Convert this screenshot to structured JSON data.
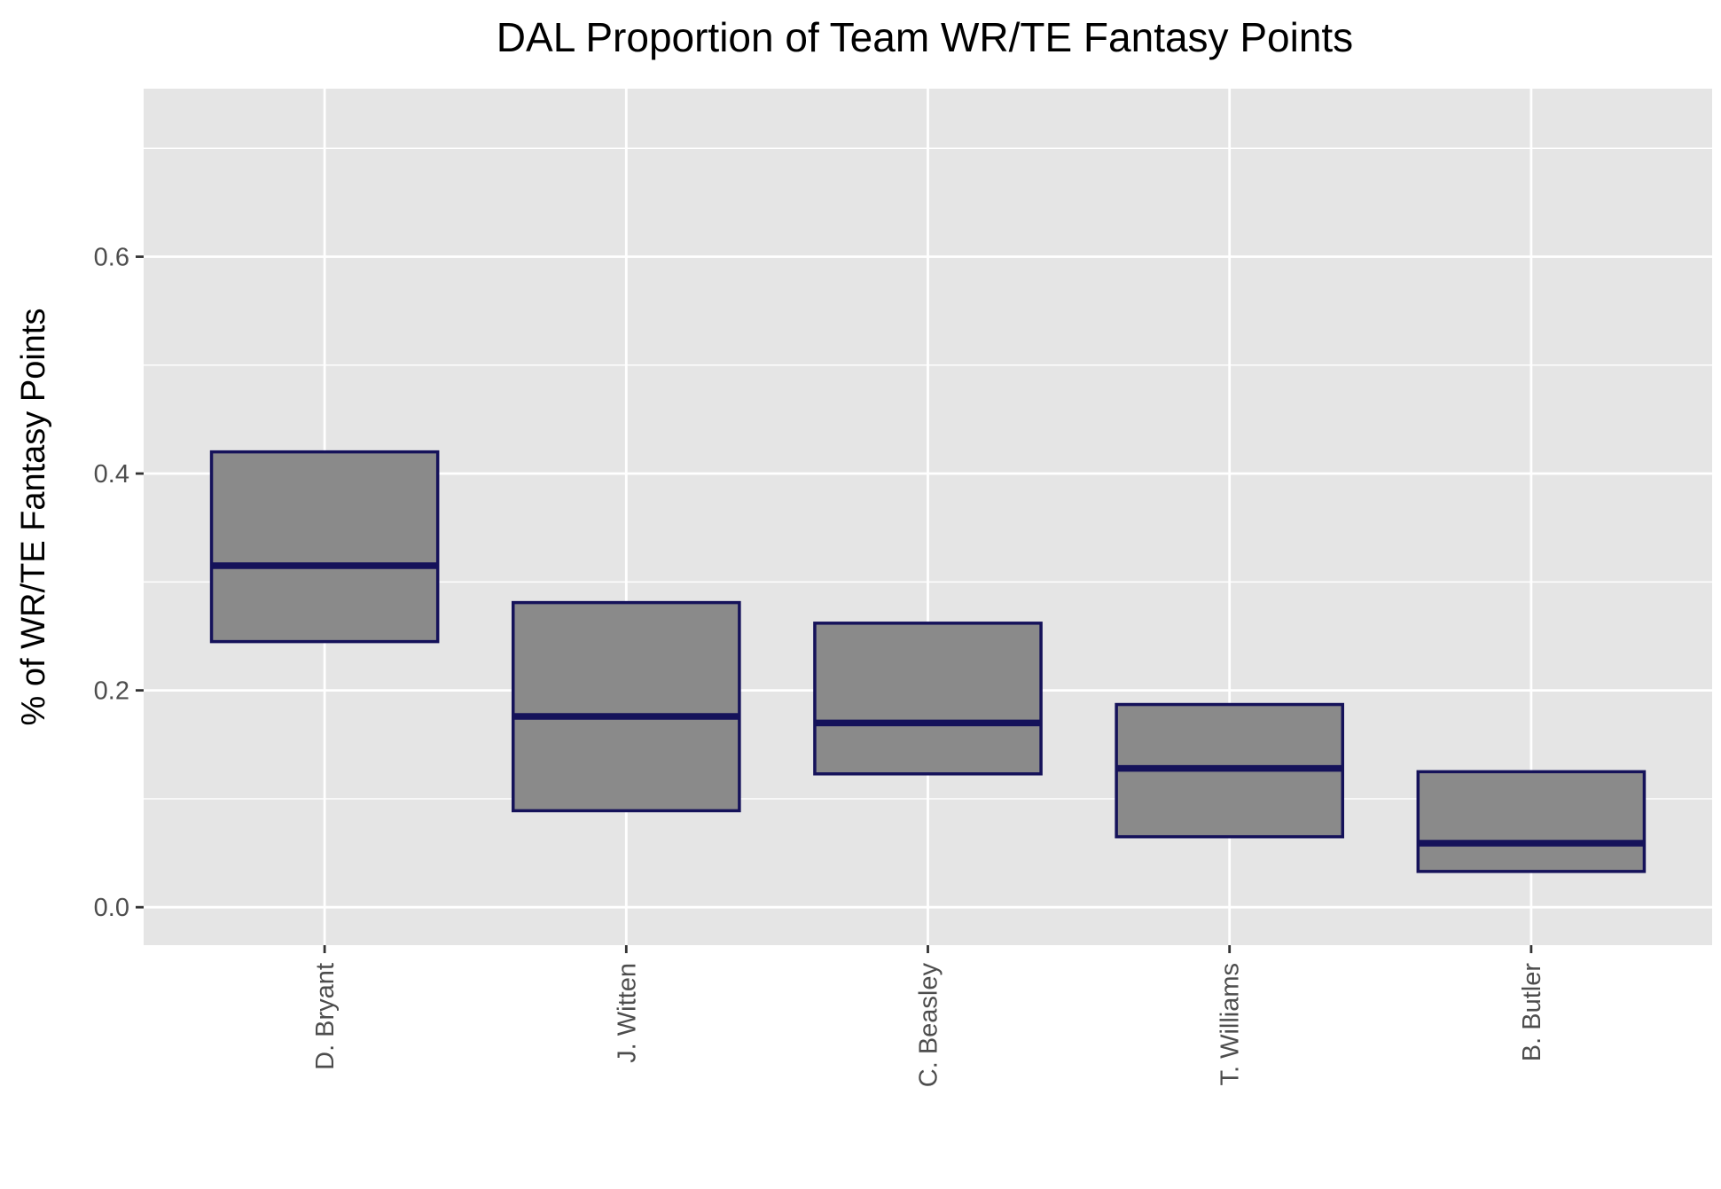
{
  "chart_data": {
    "type": "boxplot",
    "title": "DAL Proportion of Team WR/TE Fantasy Points",
    "xlabel": "",
    "ylabel": "% of WR/TE Fantasy Points",
    "ylim": [
      -0.035,
      0.755
    ],
    "y_ticks": [
      0.0,
      0.2,
      0.4,
      0.6
    ],
    "y_tick_labels": [
      "0.0",
      "0.2",
      "0.4",
      "0.6"
    ],
    "grid": true,
    "categories": [
      "D. Bryant",
      "J. Witten",
      "C. Beasley",
      "T. Williams",
      "B. Butler"
    ],
    "boxes": [
      {
        "name": "D. Bryant",
        "q1": 0.245,
        "median": 0.315,
        "q3": 0.42
      },
      {
        "name": "J. Witten",
        "q1": 0.089,
        "median": 0.176,
        "q3": 0.281
      },
      {
        "name": "C. Beasley",
        "q1": 0.123,
        "median": 0.17,
        "q3": 0.262
      },
      {
        "name": "T. Williams",
        "q1": 0.065,
        "median": 0.128,
        "q3": 0.187
      },
      {
        "name": "B. Butler",
        "q1": 0.033,
        "median": 0.059,
        "q3": 0.125
      }
    ],
    "colors": {
      "panel_background": "#e5e5e5",
      "grid": "#ffffff",
      "box_fill": "#8a8a8a",
      "box_outline": "#15125a",
      "tick_label": "#4d4d4d",
      "axis_tick": "#333333",
      "text": "#000000"
    }
  }
}
